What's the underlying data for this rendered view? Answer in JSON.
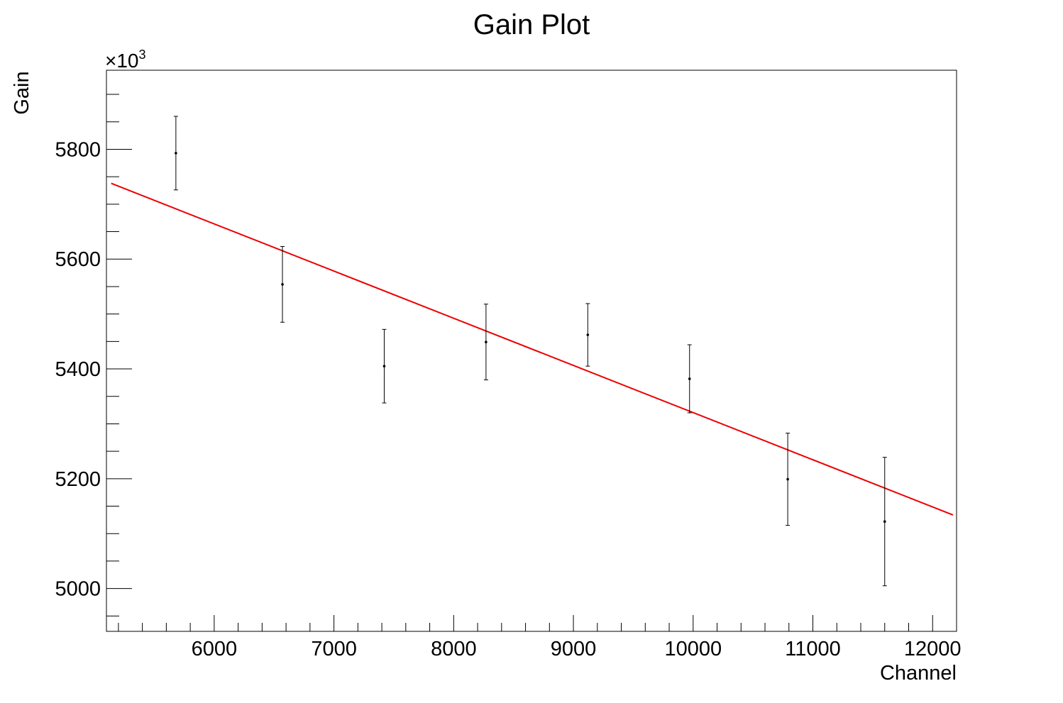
{
  "chart_data": {
    "type": "scatter",
    "title": "Gain Plot",
    "xlabel": "Channel",
    "ylabel": "Gain",
    "y_multiplier_label": "×10",
    "y_multiplier_exponent": "3",
    "xlim": [
      5100,
      12200
    ],
    "ylim": [
      4922,
      5944
    ],
    "x_ticks": [
      "6000",
      "7000",
      "8000",
      "9000",
      "10000",
      "11000",
      "12000"
    ],
    "y_ticks": [
      "5000",
      "5200",
      "5400",
      "5600",
      "5800"
    ],
    "grid": false,
    "series": [
      {
        "kind": "points_with_errors",
        "color": "#000000",
        "points": [
          {
            "x": 5680,
            "y": 5793,
            "err": 67
          },
          {
            "x": 6570,
            "y": 5554,
            "err": 69
          },
          {
            "x": 7420,
            "y": 5405,
            "err": 67
          },
          {
            "x": 8270,
            "y": 5449,
            "err": 69
          },
          {
            "x": 9120,
            "y": 5462,
            "err": 57
          },
          {
            "x": 9970,
            "y": 5382,
            "err": 62
          },
          {
            "x": 10790,
            "y": 5199,
            "err": 84
          },
          {
            "x": 11600,
            "y": 5122,
            "err": 117
          }
        ]
      },
      {
        "kind": "fit_line",
        "color": "#ee0000",
        "x": [
          5140,
          12170
        ],
        "y": [
          5738,
          5134
        ]
      }
    ]
  }
}
